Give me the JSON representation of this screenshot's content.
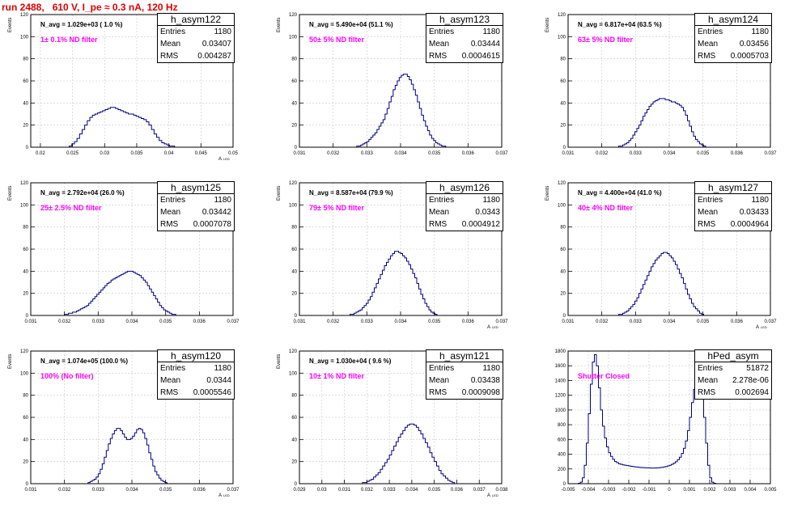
{
  "page": {
    "title": "run 2488,   610 V, I_pe ≈ 0.3 nA, 120 Hz"
  },
  "colors": {
    "histogram": "#000080",
    "grid": "#c8c8c8",
    "title": "#e00000",
    "annotation": "#ff00ff"
  },
  "chart_data": [
    {
      "type": "histogram",
      "name": "h_asym122",
      "stats": {
        "entries": "1180",
        "mean": "0.03407",
        "rms": "0.004287"
      },
      "stat_labels": {
        "entries": "Entries",
        "mean": "Mean",
        "rms": "RMS"
      },
      "n_avg": "N_avg = 1.029e+03 ( 1.0 %)",
      "filter": "1± 0.1% ND filter",
      "xlabel": "A",
      "xlabel_sub": "LED",
      "ylabel": "Events",
      "xlim": [
        0.0185,
        0.05
      ],
      "ylim": [
        0,
        120
      ],
      "xticks": [
        0.02,
        0.025,
        0.03,
        0.035,
        0.04,
        0.045,
        0.05
      ],
      "xtick_labels": [
        "0.02",
        "0.025",
        "0.03",
        "0.035",
        "0.04",
        "0.045",
        "0.05"
      ],
      "yticks": [
        0,
        20,
        40,
        60,
        80,
        100,
        120
      ],
      "ytick_labels": [
        "0",
        "20",
        "40",
        "60",
        "80",
        "100",
        "120"
      ],
      "bins_start": 0.0245,
      "bin_width": 0.0004,
      "counts": [
        1,
        3,
        5,
        8,
        12,
        16,
        20,
        24,
        27,
        29,
        30,
        31,
        32,
        33,
        34,
        35,
        36,
        36,
        35,
        34,
        33,
        32,
        31,
        30,
        30,
        29,
        28,
        27,
        26,
        25,
        23,
        20,
        16,
        12,
        9,
        6,
        4,
        3,
        2,
        1,
        1
      ]
    },
    {
      "type": "histogram",
      "name": "h_asym123",
      "stats": {
        "entries": "1180",
        "mean": "0.03444",
        "rms": "0.0004615"
      },
      "stat_labels": {
        "entries": "Entries",
        "mean": "Mean",
        "rms": "RMS"
      },
      "n_avg": "N_avg = 5.490e+04 (51.1 %)",
      "filter": "50± 5% ND filter",
      "xlabel": "",
      "xlabel_sub": "",
      "ylabel": "Events",
      "xlim": [
        0.031,
        0.037
      ],
      "ylim": [
        0,
        120
      ],
      "xticks": [
        0.031,
        0.032,
        0.033,
        0.034,
        0.035,
        0.036,
        0.037
      ],
      "xtick_labels": [
        "0.031",
        "0.032",
        "0.033",
        "0.034",
        "0.035",
        "0.036",
        "0.037"
      ],
      "yticks": [
        0,
        20,
        40,
        60,
        80,
        100,
        120
      ],
      "ytick_labels": [
        "0",
        "20",
        "40",
        "60",
        "80",
        "100",
        "120"
      ],
      "bins_start": 0.0327,
      "bin_width": 6e-05,
      "counts": [
        1,
        1,
        2,
        3,
        4,
        5,
        7,
        9,
        11,
        13,
        16,
        19,
        22,
        25,
        30,
        35,
        41,
        46,
        52,
        56,
        60,
        63,
        65,
        66,
        66,
        64,
        61,
        57,
        52,
        47,
        41,
        35,
        29,
        24,
        19,
        15,
        11,
        8,
        6,
        4,
        3,
        2,
        1,
        1
      ]
    },
    {
      "type": "histogram",
      "name": "h_asym124",
      "stats": {
        "entries": "1180",
        "mean": "0.03456",
        "rms": "0.0005703"
      },
      "stat_labels": {
        "entries": "Entries",
        "mean": "Mean",
        "rms": "RMS"
      },
      "n_avg": "N_avg = 6.817e+04 (63.5 %)",
      "filter": "63± 5% ND filter",
      "xlabel": "",
      "xlabel_sub": "",
      "ylabel": "Events",
      "xlim": [
        0.031,
        0.037
      ],
      "ylim": [
        0,
        120
      ],
      "xticks": [
        0.031,
        0.032,
        0.033,
        0.034,
        0.035,
        0.036,
        0.037
      ],
      "xtick_labels": [
        "0.031",
        "0.032",
        "0.033",
        "0.034",
        "0.035",
        "0.036",
        "0.037"
      ],
      "yticks": [
        0,
        20,
        40,
        60,
        80,
        100,
        120
      ],
      "ytick_labels": [
        "0",
        "20",
        "40",
        "60",
        "80",
        "100",
        "120"
      ],
      "bins_start": 0.0325,
      "bin_width": 6e-05,
      "counts": [
        1,
        1,
        2,
        3,
        4,
        6,
        8,
        11,
        14,
        17,
        20,
        24,
        28,
        31,
        34,
        37,
        39,
        41,
        42,
        43,
        44,
        44,
        44,
        43,
        43,
        42,
        41,
        41,
        40,
        39,
        38,
        36,
        33,
        29,
        24,
        19,
        14,
        10,
        7,
        5,
        3,
        2,
        1
      ]
    },
    {
      "type": "histogram",
      "name": "h_asym125",
      "stats": {
        "entries": "1180",
        "mean": "0.03442",
        "rms": "0.0007078"
      },
      "stat_labels": {
        "entries": "Entries",
        "mean": "Mean",
        "rms": "RMS"
      },
      "n_avg": "N_avg = 2.792e+04 (26.0 %)",
      "filter": "25± 2.5% ND filter",
      "xlabel": "",
      "xlabel_sub": "",
      "ylabel": "Events",
      "xlim": [
        0.031,
        0.037
      ],
      "ylim": [
        0,
        120
      ],
      "xticks": [
        0.031,
        0.032,
        0.033,
        0.034,
        0.035,
        0.036,
        0.037
      ],
      "xtick_labels": [
        "0.031",
        "0.032",
        "0.033",
        "0.034",
        "0.035",
        "0.036",
        "0.037"
      ],
      "yticks": [
        0,
        20,
        40,
        60,
        80,
        100,
        120
      ],
      "ytick_labels": [
        "0",
        "20",
        "40",
        "60",
        "80",
        "100",
        "120"
      ],
      "bins_start": 0.032,
      "bin_width": 6e-05,
      "counts": [
        1,
        1,
        2,
        2,
        3,
        3,
        4,
        5,
        6,
        7,
        8,
        9,
        11,
        13,
        15,
        17,
        19,
        21,
        23,
        25,
        27,
        29,
        30,
        32,
        33,
        34,
        35,
        36,
        37,
        38,
        39,
        40,
        40,
        40,
        39,
        38,
        37,
        36,
        34,
        32,
        30,
        27,
        24,
        21,
        18,
        15,
        12,
        9,
        7,
        5,
        4,
        3,
        2,
        1,
        1
      ]
    },
    {
      "type": "histogram",
      "name": "h_asym126",
      "stats": {
        "entries": "1180",
        "mean": "0.0343",
        "rms": "0.0004912"
      },
      "stat_labels": {
        "entries": "Entries",
        "mean": "Mean",
        "rms": "RMS"
      },
      "n_avg": "N_avg = 8.587e+04 (79.9 %)",
      "filter": "79± 5% ND filter",
      "xlabel": "A",
      "xlabel_sub": "LED",
      "ylabel": "Events",
      "xlim": [
        0.031,
        0.037
      ],
      "ylim": [
        0,
        120
      ],
      "xticks": [
        0.031,
        0.032,
        0.033,
        0.034,
        0.035,
        0.036,
        0.037
      ],
      "xtick_labels": [
        "0.031",
        "0.032",
        "0.033",
        "0.034",
        "0.035",
        "0.036",
        "0.037"
      ],
      "yticks": [
        0,
        20,
        40,
        60,
        80,
        100,
        120
      ],
      "ytick_labels": [
        "0",
        "20",
        "40",
        "60",
        "80",
        "100",
        "120"
      ],
      "bins_start": 0.0325,
      "bin_width": 6e-05,
      "counts": [
        1,
        1,
        2,
        3,
        4,
        5,
        7,
        9,
        11,
        14,
        17,
        21,
        25,
        29,
        33,
        37,
        41,
        45,
        48,
        51,
        54,
        56,
        58,
        58,
        57,
        56,
        54,
        52,
        49,
        46,
        42,
        38,
        34,
        29,
        24,
        19,
        15,
        11,
        8,
        5,
        3,
        2,
        1
      ]
    },
    {
      "type": "histogram",
      "name": "h_asym127",
      "stats": {
        "entries": "1180",
        "mean": "0.03433",
        "rms": "0.0004964"
      },
      "stat_labels": {
        "entries": "Entries",
        "mean": "Mean",
        "rms": "RMS"
      },
      "n_avg": "N_avg = 4.400e+04 (41.0 %)",
      "filter": "40± 4% ND filter",
      "xlabel": "A",
      "xlabel_sub": "LED",
      "ylabel": "Events",
      "xlim": [
        0.031,
        0.037
      ],
      "ylim": [
        0,
        120
      ],
      "xticks": [
        0.031,
        0.032,
        0.033,
        0.034,
        0.035,
        0.036,
        0.037
      ],
      "xtick_labels": [
        "0.031",
        "0.032",
        "0.033",
        "0.034",
        "0.035",
        "0.036",
        "0.037"
      ],
      "yticks": [
        0,
        20,
        40,
        60,
        80,
        100,
        120
      ],
      "ytick_labels": [
        "0",
        "20",
        "40",
        "60",
        "80",
        "100",
        "120"
      ],
      "bins_start": 0.0325,
      "bin_width": 6e-05,
      "counts": [
        1,
        1,
        2,
        3,
        4,
        6,
        8,
        10,
        13,
        16,
        20,
        24,
        28,
        32,
        36,
        40,
        44,
        47,
        50,
        52,
        54,
        56,
        57,
        57,
        56,
        54,
        52,
        49,
        46,
        42,
        38,
        34,
        29,
        24,
        19,
        15,
        11,
        8,
        6,
        4,
        2,
        1
      ]
    },
    {
      "type": "histogram",
      "name": "h_asym120",
      "stats": {
        "entries": "1180",
        "mean": "0.0344",
        "rms": "0.0005546"
      },
      "stat_labels": {
        "entries": "Entries",
        "mean": "Mean",
        "rms": "RMS"
      },
      "n_avg": "N_avg = 1.074e+05 (100.0 %)",
      "filter": "100% (No filter)",
      "xlabel": "A",
      "xlabel_sub": "LED",
      "ylabel": "Events",
      "xlim": [
        0.031,
        0.037
      ],
      "ylim": [
        0,
        120
      ],
      "xticks": [
        0.031,
        0.032,
        0.033,
        0.034,
        0.035,
        0.036,
        0.037
      ],
      "xtick_labels": [
        "0.031",
        "0.032",
        "0.033",
        "0.034",
        "0.035",
        "0.036",
        "0.037"
      ],
      "yticks": [
        0,
        20,
        40,
        60,
        80,
        100,
        120
      ],
      "ytick_labels": [
        "0",
        "20",
        "40",
        "60",
        "80",
        "100",
        "120"
      ],
      "bins_start": 0.0327,
      "bin_width": 6e-05,
      "counts": [
        1,
        2,
        3,
        4,
        6,
        9,
        13,
        18,
        24,
        30,
        36,
        41,
        45,
        48,
        50,
        50,
        48,
        45,
        42,
        40,
        40,
        41,
        43,
        46,
        49,
        50,
        49,
        46,
        41,
        35,
        28,
        22,
        16,
        11,
        8,
        5,
        3,
        2,
        1
      ]
    },
    {
      "type": "histogram",
      "name": "h_asym121",
      "stats": {
        "entries": "1180",
        "mean": "0.03438",
        "rms": "0.0009098"
      },
      "stat_labels": {
        "entries": "Entries",
        "mean": "Mean",
        "rms": "RMS"
      },
      "n_avg": "N_avg = 1.030e+04 ( 9.6 %)",
      "filter": "10± 1% ND filter",
      "xlabel": "A",
      "xlabel_sub": "LED",
      "ylabel": "Events",
      "xlim": [
        0.029,
        0.038
      ],
      "ylim": [
        0,
        120
      ],
      "xticks": [
        0.029,
        0.03,
        0.031,
        0.032,
        0.033,
        0.034,
        0.035,
        0.036,
        0.037,
        0.038
      ],
      "xtick_labels": [
        "0.029",
        "0.03",
        "0.031",
        "0.032",
        "0.033",
        "0.034",
        "0.035",
        "0.036",
        "0.037",
        "0.038"
      ],
      "yticks": [
        0,
        20,
        40,
        60,
        80,
        100,
        120
      ],
      "ytick_labels": [
        "0",
        "20",
        "40",
        "60",
        "80",
        "100",
        "120"
      ],
      "bins_start": 0.0318,
      "bin_width": 0.0001,
      "counts": [
        1,
        1,
        2,
        3,
        4,
        6,
        8,
        10,
        13,
        16,
        19,
        22,
        26,
        30,
        34,
        38,
        42,
        45,
        48,
        51,
        53,
        54,
        54,
        53,
        51,
        48,
        45,
        41,
        37,
        33,
        28,
        24,
        20,
        16,
        12,
        9,
        7,
        5,
        3,
        2,
        1
      ]
    },
    {
      "type": "histogram",
      "name": "hPed_asym",
      "stats": {
        "entries": "51872",
        "mean": "2.278e-06",
        "rms": "0.002694"
      },
      "stat_labels": {
        "entries": "Entries",
        "mean": "Mean",
        "rms": "RMS"
      },
      "n_avg": "",
      "filter": "Shutter Closed",
      "xlabel": "",
      "xlabel_sub": "",
      "ylabel": "",
      "xlim": [
        -0.005,
        0.005
      ],
      "ylim": [
        0,
        1800
      ],
      "xticks": [
        -0.005,
        -0.004,
        -0.003,
        -0.002,
        -0.001,
        0,
        0.001,
        0.002,
        0.003,
        0.004,
        0.005
      ],
      "xtick_labels": [
        "-0.005",
        "-0.004",
        "-0.003",
        "-0.002",
        "-0.001",
        "0",
        "0.001",
        "0.002",
        "0.003",
        "0.004",
        "0.005"
      ],
      "yticks": [
        0,
        200,
        400,
        600,
        800,
        1000,
        1200,
        1400,
        1600,
        1800
      ],
      "ytick_labels": [
        "0",
        "200",
        "400",
        "600",
        "800",
        "1000",
        "1200",
        "1400",
        "1600",
        "1800"
      ],
      "bins_start": -0.0045,
      "bin_width": 0.0001,
      "counts": [
        5,
        20,
        80,
        250,
        550,
        950,
        1350,
        1650,
        1750,
        1600,
        1300,
        1000,
        780,
        620,
        500,
        420,
        370,
        330,
        300,
        285,
        270,
        262,
        255,
        250,
        245,
        240,
        236,
        232,
        228,
        225,
        222,
        220,
        218,
        216,
        215,
        214,
        213,
        213,
        214,
        216,
        218,
        222,
        226,
        232,
        240,
        250,
        262,
        278,
        298,
        325,
        360,
        410,
        480,
        580,
        720,
        900,
        1100,
        1280,
        1400,
        1440,
        1380,
        1200,
        900,
        550,
        250,
        80,
        20,
        5
      ]
    }
  ]
}
